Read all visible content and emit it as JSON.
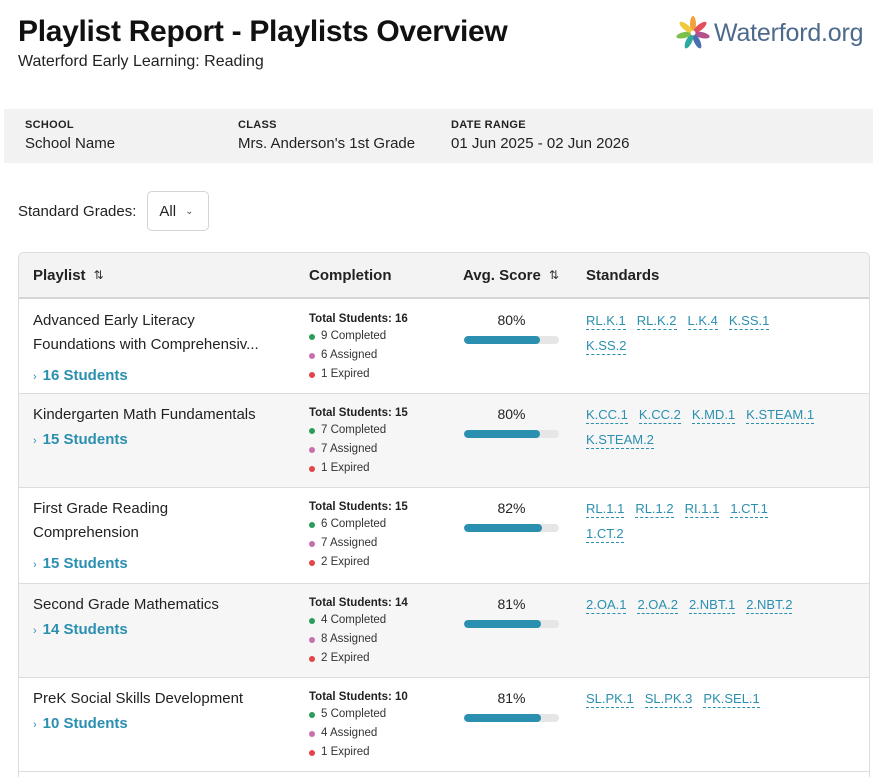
{
  "header": {
    "title": "Playlist Report - Playlists Overview",
    "subtitle": "Waterford Early Learning: Reading",
    "logo_text": "Waterford.org"
  },
  "info": {
    "school_label": "SCHOOL",
    "school_value": "School Name",
    "class_label": "CLASS",
    "class_value": "Mrs. Anderson's 1st Grade",
    "date_label": "DATE RANGE",
    "date_value": "01 Jun 2025 - 02 Jun 2026"
  },
  "filter": {
    "label": "Standard Grades:",
    "value": "All"
  },
  "table": {
    "col_playlist": "Playlist",
    "col_completion": "Completion",
    "col_score": "Avg. Score",
    "col_standards": "Standards",
    "rows": [
      {
        "name_line1": "Advanced Early Literacy",
        "name_line2": "Foundations with Comprehensiv...",
        "students": "16 Students",
        "total": "Total Students: 16",
        "completed": "9 Completed",
        "assigned": "6 Assigned",
        "expired": "1 Expired",
        "score": "80%",
        "score_value": 80,
        "standards": [
          "RL.K.1",
          "RL.K.2",
          "L.K.4",
          "K.SS.1",
          "K.SS.2"
        ]
      },
      {
        "name_line1": "Kindergarten Math Fundamentals",
        "name_line2": "",
        "students": "15 Students",
        "total": "Total Students: 15",
        "completed": "7 Completed",
        "assigned": "7 Assigned",
        "expired": "1 Expired",
        "score": "80%",
        "score_value": 80,
        "standards": [
          "K.CC.1",
          "K.CC.2",
          "K.MD.1",
          "K.STEAM.1",
          "K.STEAM.2"
        ]
      },
      {
        "name_line1": "First Grade Reading",
        "name_line2": "Comprehension",
        "students": "15 Students",
        "total": "Total Students: 15",
        "completed": "6 Completed",
        "assigned": "7 Assigned",
        "expired": "2 Expired",
        "score": "82%",
        "score_value": 82,
        "standards": [
          "RL.1.1",
          "RL.1.2",
          "RI.1.1",
          "1.CT.1",
          "1.CT.2"
        ]
      },
      {
        "name_line1": "Second Grade Mathematics",
        "name_line2": "",
        "students": "14 Students",
        "total": "Total Students: 14",
        "completed": "4 Completed",
        "assigned": "8 Assigned",
        "expired": "2 Expired",
        "score": "81%",
        "score_value": 81,
        "standards": [
          "2.OA.1",
          "2.OA.2",
          "2.NBT.1",
          "2.NBT.2"
        ]
      },
      {
        "name_line1": "PreK Social Skills Development",
        "name_line2": "",
        "students": "10 Students",
        "total": "Total Students: 10",
        "completed": "5 Completed",
        "assigned": "4 Assigned",
        "expired": "1 Expired",
        "score": "81%",
        "score_value": 81,
        "standards": [
          "SL.PK.1",
          "SL.PK.3",
          "PK.SEL.1"
        ]
      }
    ]
  },
  "colors": {
    "accent": "#2b8fb0",
    "completed": "#2a9d5c",
    "assigned": "#c86fae",
    "expired": "#e0454a"
  },
  "icons": {
    "logo": "waterford-flower-icon",
    "sort": "sort-arrows-icon",
    "caret": "chevron-right-icon",
    "dropdown": "chevron-down-icon"
  }
}
